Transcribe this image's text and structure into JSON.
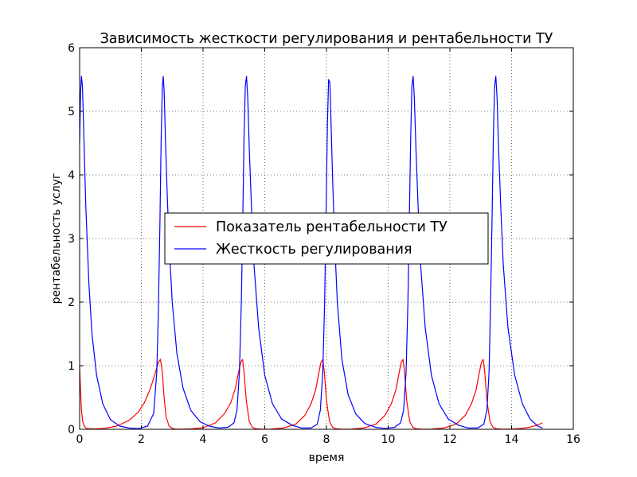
{
  "chart_data": {
    "type": "line",
    "title": "Зависимость жесткости регулирования и рентабельности ТУ",
    "xlabel": "время",
    "ylabel": "рентабельность услуг",
    "xlim": [
      0,
      16
    ],
    "ylim": [
      0,
      6
    ],
    "xticks": [
      "0",
      "2",
      "4",
      "6",
      "8",
      "10",
      "12",
      "14",
      "16"
    ],
    "yticks": [
      "0",
      "1",
      "2",
      "3",
      "4",
      "5",
      "6"
    ],
    "grid": true,
    "legend_position": "center",
    "series": [
      {
        "name": "Показатель рентабельности ТУ",
        "color": "#ff0000",
        "x": [
          0,
          0.03,
          0.06,
          0.1,
          0.15,
          0.2,
          0.3,
          0.5,
          0.8,
          1.2,
          1.6,
          1.9,
          2.1,
          2.3,
          2.45,
          2.55,
          2.62,
          2.68,
          2.73,
          2.8,
          2.9,
          3.0,
          3.1,
          3.3,
          3.6,
          4.0,
          4.4,
          4.7,
          4.9,
          5.05,
          5.15,
          5.22,
          5.28,
          5.33,
          5.4,
          5.5,
          5.6,
          5.7,
          5.9,
          6.2,
          6.6,
          7.0,
          7.3,
          7.5,
          7.65,
          7.75,
          7.82,
          7.88,
          7.93,
          8.0,
          8.1,
          8.2,
          8.3,
          8.5,
          8.8,
          9.2,
          9.6,
          9.9,
          10.1,
          10.25,
          10.35,
          10.42,
          10.48,
          10.53,
          10.6,
          10.7,
          10.8,
          10.9,
          11.1,
          11.4,
          11.8,
          12.2,
          12.5,
          12.7,
          12.85,
          12.95,
          13.02,
          13.08,
          13.13,
          13.2,
          13.3,
          13.4,
          13.5,
          13.7,
          14.0,
          14.3,
          14.6,
          14.8,
          15.0
        ],
        "y": [
          1.0,
          0.6,
          0.3,
          0.12,
          0.05,
          0.02,
          0.008,
          0.006,
          0.015,
          0.05,
          0.14,
          0.27,
          0.42,
          0.65,
          0.88,
          1.05,
          1.1,
          0.9,
          0.55,
          0.2,
          0.05,
          0.015,
          0.005,
          0.002,
          0.006,
          0.025,
          0.1,
          0.25,
          0.42,
          0.65,
          0.9,
          1.05,
          1.1,
          0.9,
          0.45,
          0.12,
          0.03,
          0.01,
          0.003,
          0.004,
          0.02,
          0.08,
          0.22,
          0.4,
          0.62,
          0.88,
          1.05,
          1.1,
          0.9,
          0.45,
          0.12,
          0.03,
          0.01,
          0.003,
          0.004,
          0.02,
          0.08,
          0.22,
          0.4,
          0.62,
          0.88,
          1.05,
          1.1,
          0.9,
          0.45,
          0.12,
          0.03,
          0.01,
          0.003,
          0.004,
          0.02,
          0.08,
          0.22,
          0.4,
          0.62,
          0.88,
          1.05,
          1.1,
          0.9,
          0.45,
          0.12,
          0.03,
          0.01,
          0.003,
          0.004,
          0.012,
          0.035,
          0.06,
          0.1
        ]
      },
      {
        "name": "Жесткость регулирования",
        "color": "#0000ff",
        "x": [
          0,
          0.03,
          0.06,
          0.09,
          0.12,
          0.16,
          0.2,
          0.3,
          0.4,
          0.55,
          0.75,
          1.0,
          1.3,
          1.6,
          1.9,
          2.2,
          2.4,
          2.5,
          2.55,
          2.6,
          2.64,
          2.68,
          2.71,
          2.74,
          2.78,
          2.83,
          2.9,
          3.0,
          3.15,
          3.35,
          3.6,
          3.9,
          4.2,
          4.5,
          4.8,
          5.0,
          5.1,
          5.18,
          5.24,
          5.29,
          5.33,
          5.37,
          5.41,
          5.45,
          5.5,
          5.57,
          5.65,
          5.8,
          6.0,
          6.25,
          6.55,
          6.9,
          7.2,
          7.5,
          7.7,
          7.8,
          7.88,
          7.94,
          7.99,
          8.03,
          8.07,
          8.11,
          8.15,
          8.2,
          8.27,
          8.35,
          8.5,
          8.7,
          8.95,
          9.25,
          9.6,
          9.9,
          10.2,
          10.4,
          10.5,
          10.58,
          10.64,
          10.69,
          10.73,
          10.77,
          10.81,
          10.85,
          10.9,
          10.97,
          11.05,
          11.2,
          11.4,
          11.65,
          11.95,
          12.3,
          12.6,
          12.9,
          13.1,
          13.2,
          13.27,
          13.32,
          13.37,
          13.41,
          13.45,
          13.49,
          13.53,
          13.58,
          13.65,
          13.73,
          13.88,
          14.1,
          14.35,
          14.6,
          14.85,
          15.0
        ],
        "y": [
          4.5,
          5.3,
          5.55,
          5.4,
          4.9,
          4.2,
          3.5,
          2.3,
          1.5,
          0.85,
          0.4,
          0.15,
          0.05,
          0.02,
          0.01,
          0.05,
          0.25,
          0.9,
          1.8,
          3.2,
          4.5,
          5.4,
          5.55,
          5.3,
          4.6,
          3.8,
          2.9,
          2.0,
          1.2,
          0.65,
          0.3,
          0.12,
          0.05,
          0.02,
          0.03,
          0.1,
          0.3,
          0.9,
          2.0,
          3.4,
          4.6,
          5.4,
          5.55,
          5.2,
          4.4,
          3.5,
          2.6,
          1.6,
          0.85,
          0.4,
          0.16,
          0.06,
          0.02,
          0.02,
          0.08,
          0.3,
          0.9,
          2.0,
          3.5,
          4.8,
          5.5,
          5.45,
          4.8,
          3.9,
          2.9,
          2.0,
          1.1,
          0.55,
          0.24,
          0.09,
          0.03,
          0.015,
          0.03,
          0.1,
          0.3,
          0.9,
          2.0,
          3.4,
          4.6,
          5.4,
          5.55,
          5.2,
          4.4,
          3.5,
          2.6,
          1.6,
          0.85,
          0.4,
          0.16,
          0.06,
          0.02,
          0.02,
          0.08,
          0.3,
          0.9,
          2.0,
          3.4,
          4.6,
          5.4,
          5.55,
          5.2,
          4.4,
          3.5,
          2.6,
          1.6,
          0.85,
          0.4,
          0.16,
          0.05,
          0.02
        ]
      }
    ]
  }
}
